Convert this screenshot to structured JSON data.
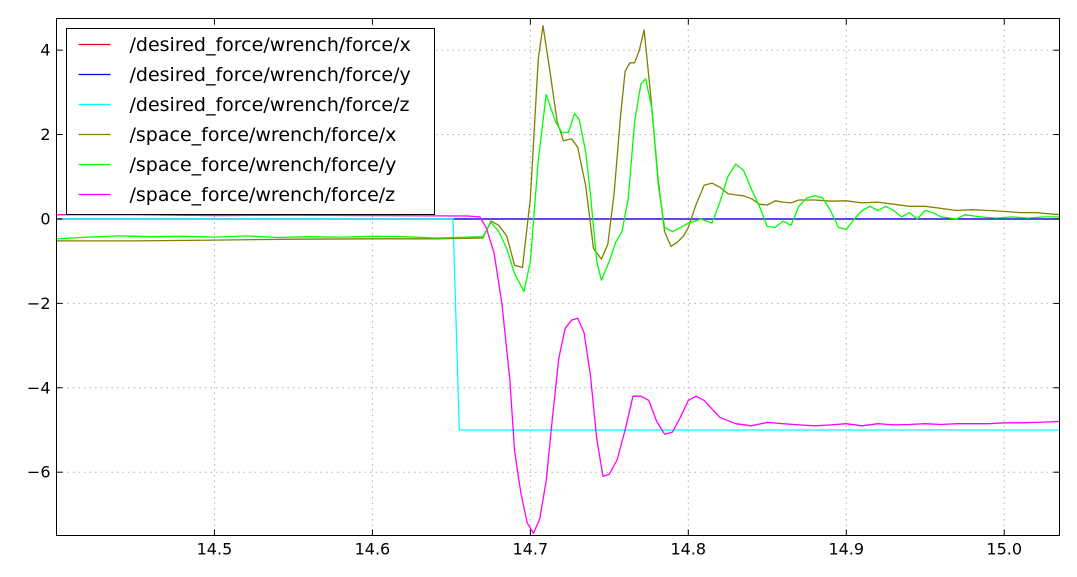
{
  "chart_data": {
    "type": "line",
    "title": "",
    "xlabel": "",
    "ylabel": "",
    "xlim": [
      14.4,
      15.035
    ],
    "ylim": [
      -7.5,
      4.75
    ],
    "grid": true,
    "legend_position": "top-left",
    "x_ticks": [
      14.5,
      14.6,
      14.7,
      14.8,
      14.9,
      15.0
    ],
    "x_tick_labels": [
      "14.5",
      "14.6",
      "14.7",
      "14.8",
      "14.9",
      "15.0"
    ],
    "y_ticks": [
      -6,
      -4,
      -2,
      0,
      2,
      4
    ],
    "y_tick_labels": [
      "−6",
      "−4",
      "−2",
      "0",
      "2",
      "4"
    ],
    "series": [
      {
        "name": "/desired_force/wrench/force/x",
        "color": "#ff0000",
        "points": [
          [
            14.4,
            0.0
          ],
          [
            15.035,
            0.0
          ]
        ]
      },
      {
        "name": "/desired_force/wrench/force/y",
        "color": "#0000ff",
        "points": [
          [
            14.4,
            0.0
          ],
          [
            15.035,
            0.0
          ]
        ]
      },
      {
        "name": "/desired_force/wrench/force/z",
        "color": "#00ffff",
        "points": [
          [
            14.4,
            0.0
          ],
          [
            14.651,
            0.0
          ],
          [
            14.655,
            -5.0
          ],
          [
            15.035,
            -5.0
          ]
        ]
      },
      {
        "name": "/space_force/wrench/force/x",
        "color": "#808000",
        "points": [
          [
            14.4,
            -0.52
          ],
          [
            14.45,
            -0.52
          ],
          [
            14.5,
            -0.5
          ],
          [
            14.55,
            -0.48
          ],
          [
            14.6,
            -0.47
          ],
          [
            14.64,
            -0.47
          ],
          [
            14.67,
            -0.45
          ],
          [
            14.675,
            -0.05
          ],
          [
            14.68,
            -0.15
          ],
          [
            14.685,
            -0.4
          ],
          [
            14.69,
            -1.1
          ],
          [
            14.695,
            -1.15
          ],
          [
            14.7,
            0.5
          ],
          [
            14.705,
            3.8
          ],
          [
            14.708,
            4.58
          ],
          [
            14.712,
            3.6
          ],
          [
            14.717,
            2.3
          ],
          [
            14.721,
            1.85
          ],
          [
            14.726,
            1.9
          ],
          [
            14.73,
            1.7
          ],
          [
            14.735,
            0.8
          ],
          [
            14.74,
            -0.7
          ],
          [
            14.745,
            -0.95
          ],
          [
            14.749,
            -0.6
          ],
          [
            14.753,
            0.6
          ],
          [
            14.757,
            2.4
          ],
          [
            14.76,
            3.5
          ],
          [
            14.763,
            3.7
          ],
          [
            14.766,
            3.7
          ],
          [
            14.769,
            4.0
          ],
          [
            14.772,
            4.48
          ],
          [
            14.776,
            3.0
          ],
          [
            14.781,
            0.9
          ],
          [
            14.785,
            -0.3
          ],
          [
            14.789,
            -0.65
          ],
          [
            14.793,
            -0.55
          ],
          [
            14.797,
            -0.4
          ],
          [
            14.8,
            -0.2
          ],
          [
            14.805,
            0.35
          ],
          [
            14.81,
            0.8
          ],
          [
            14.815,
            0.85
          ],
          [
            14.82,
            0.75
          ],
          [
            14.825,
            0.6
          ],
          [
            14.83,
            0.57
          ],
          [
            14.835,
            0.55
          ],
          [
            14.84,
            0.48
          ],
          [
            14.845,
            0.35
          ],
          [
            14.85,
            0.33
          ],
          [
            14.855,
            0.43
          ],
          [
            14.86,
            0.4
          ],
          [
            14.865,
            0.38
          ],
          [
            14.87,
            0.45
          ],
          [
            14.88,
            0.45
          ],
          [
            14.89,
            0.42
          ],
          [
            14.9,
            0.43
          ],
          [
            14.91,
            0.38
          ],
          [
            14.92,
            0.4
          ],
          [
            14.93,
            0.35
          ],
          [
            14.94,
            0.3
          ],
          [
            14.95,
            0.3
          ],
          [
            14.96,
            0.25
          ],
          [
            14.97,
            0.2
          ],
          [
            14.98,
            0.22
          ],
          [
            14.99,
            0.2
          ],
          [
            15.0,
            0.18
          ],
          [
            15.01,
            0.15
          ],
          [
            15.02,
            0.15
          ],
          [
            15.035,
            0.1
          ]
        ]
      },
      {
        "name": "/space_force/wrench/force/y",
        "color": "#00ff00",
        "points": [
          [
            14.4,
            -0.47
          ],
          [
            14.42,
            -0.43
          ],
          [
            14.44,
            -0.4
          ],
          [
            14.46,
            -0.42
          ],
          [
            14.48,
            -0.41
          ],
          [
            14.5,
            -0.43
          ],
          [
            14.52,
            -0.4
          ],
          [
            14.54,
            -0.44
          ],
          [
            14.56,
            -0.42
          ],
          [
            14.58,
            -0.43
          ],
          [
            14.6,
            -0.41
          ],
          [
            14.62,
            -0.42
          ],
          [
            14.64,
            -0.45
          ],
          [
            14.66,
            -0.43
          ],
          [
            14.67,
            -0.42
          ],
          [
            14.675,
            -0.08
          ],
          [
            14.68,
            -0.3
          ],
          [
            14.685,
            -0.7
          ],
          [
            14.69,
            -1.3
          ],
          [
            14.696,
            -1.72
          ],
          [
            14.7,
            -1.0
          ],
          [
            14.705,
            1.4
          ],
          [
            14.71,
            2.95
          ],
          [
            14.716,
            2.3
          ],
          [
            14.72,
            2.05
          ],
          [
            14.724,
            2.05
          ],
          [
            14.728,
            2.5
          ],
          [
            14.731,
            2.35
          ],
          [
            14.735,
            1.6
          ],
          [
            14.738,
            0.6
          ],
          [
            14.742,
            -1.0
          ],
          [
            14.745,
            -1.45
          ],
          [
            14.75,
            -1.0
          ],
          [
            14.754,
            -0.55
          ],
          [
            14.758,
            -0.3
          ],
          [
            14.762,
            0.5
          ],
          [
            14.766,
            2.3
          ],
          [
            14.77,
            3.2
          ],
          [
            14.773,
            3.32
          ],
          [
            14.777,
            2.6
          ],
          [
            14.781,
            0.8
          ],
          [
            14.785,
            -0.2
          ],
          [
            14.79,
            -0.3
          ],
          [
            14.795,
            -0.2
          ],
          [
            14.8,
            -0.1
          ],
          [
            14.808,
            0.0
          ],
          [
            14.815,
            -0.1
          ],
          [
            14.82,
            0.4
          ],
          [
            14.825,
            1.0
          ],
          [
            14.83,
            1.3
          ],
          [
            14.835,
            1.15
          ],
          [
            14.84,
            0.7
          ],
          [
            14.845,
            0.3
          ],
          [
            14.85,
            -0.18
          ],
          [
            14.855,
            -0.2
          ],
          [
            14.86,
            -0.05
          ],
          [
            14.865,
            -0.15
          ],
          [
            14.87,
            0.3
          ],
          [
            14.875,
            0.5
          ],
          [
            14.88,
            0.55
          ],
          [
            14.885,
            0.5
          ],
          [
            14.89,
            0.2
          ],
          [
            14.895,
            -0.2
          ],
          [
            14.9,
            -0.25
          ],
          [
            14.905,
            0.0
          ],
          [
            14.91,
            0.2
          ],
          [
            14.915,
            0.3
          ],
          [
            14.92,
            0.2
          ],
          [
            14.925,
            0.3
          ],
          [
            14.93,
            0.2
          ],
          [
            14.935,
            0.05
          ],
          [
            14.94,
            0.15
          ],
          [
            14.945,
            0.0
          ],
          [
            14.95,
            0.2
          ],
          [
            14.955,
            0.15
          ],
          [
            14.96,
            0.05
          ],
          [
            14.97,
            0.0
          ],
          [
            14.975,
            0.1
          ],
          [
            14.985,
            0.05
          ],
          [
            14.995,
            0.02
          ],
          [
            15.005,
            0.05
          ],
          [
            15.015,
            0.02
          ],
          [
            15.025,
            0.05
          ],
          [
            15.035,
            0.05
          ]
        ]
      },
      {
        "name": "/space_force/wrench/force/z",
        "color": "#ff00ff",
        "points": [
          [
            14.4,
            0.1
          ],
          [
            14.45,
            0.1
          ],
          [
            14.5,
            0.08
          ],
          [
            14.55,
            0.09
          ],
          [
            14.6,
            0.08
          ],
          [
            14.66,
            0.07
          ],
          [
            14.668,
            0.05
          ],
          [
            14.672,
            -0.2
          ],
          [
            14.677,
            -0.8
          ],
          [
            14.682,
            -2.0
          ],
          [
            14.687,
            -3.8
          ],
          [
            14.69,
            -5.5
          ],
          [
            14.694,
            -6.5
          ],
          [
            14.698,
            -7.2
          ],
          [
            14.702,
            -7.45
          ],
          [
            14.706,
            -7.1
          ],
          [
            14.71,
            -6.2
          ],
          [
            14.714,
            -4.7
          ],
          [
            14.718,
            -3.3
          ],
          [
            14.722,
            -2.6
          ],
          [
            14.726,
            -2.4
          ],
          [
            14.73,
            -2.35
          ],
          [
            14.734,
            -2.7
          ],
          [
            14.738,
            -3.7
          ],
          [
            14.742,
            -5.2
          ],
          [
            14.746,
            -6.1
          ],
          [
            14.75,
            -6.05
          ],
          [
            14.755,
            -5.7
          ],
          [
            14.76,
            -5.0
          ],
          [
            14.765,
            -4.2
          ],
          [
            14.77,
            -4.2
          ],
          [
            14.775,
            -4.3
          ],
          [
            14.78,
            -4.8
          ],
          [
            14.785,
            -5.1
          ],
          [
            14.79,
            -5.05
          ],
          [
            14.795,
            -4.7
          ],
          [
            14.8,
            -4.3
          ],
          [
            14.805,
            -4.2
          ],
          [
            14.81,
            -4.3
          ],
          [
            14.815,
            -4.5
          ],
          [
            14.82,
            -4.7
          ],
          [
            14.83,
            -4.85
          ],
          [
            14.84,
            -4.9
          ],
          [
            14.85,
            -4.82
          ],
          [
            14.86,
            -4.85
          ],
          [
            14.87,
            -4.88
          ],
          [
            14.88,
            -4.9
          ],
          [
            14.89,
            -4.88
          ],
          [
            14.9,
            -4.85
          ],
          [
            14.91,
            -4.9
          ],
          [
            14.92,
            -4.85
          ],
          [
            14.93,
            -4.88
          ],
          [
            14.94,
            -4.87
          ],
          [
            14.95,
            -4.85
          ],
          [
            14.96,
            -4.87
          ],
          [
            14.97,
            -4.85
          ],
          [
            14.98,
            -4.85
          ],
          [
            14.99,
            -4.85
          ],
          [
            15.0,
            -4.83
          ],
          [
            15.01,
            -4.83
          ],
          [
            15.02,
            -4.82
          ],
          [
            15.035,
            -4.8
          ]
        ]
      }
    ]
  }
}
